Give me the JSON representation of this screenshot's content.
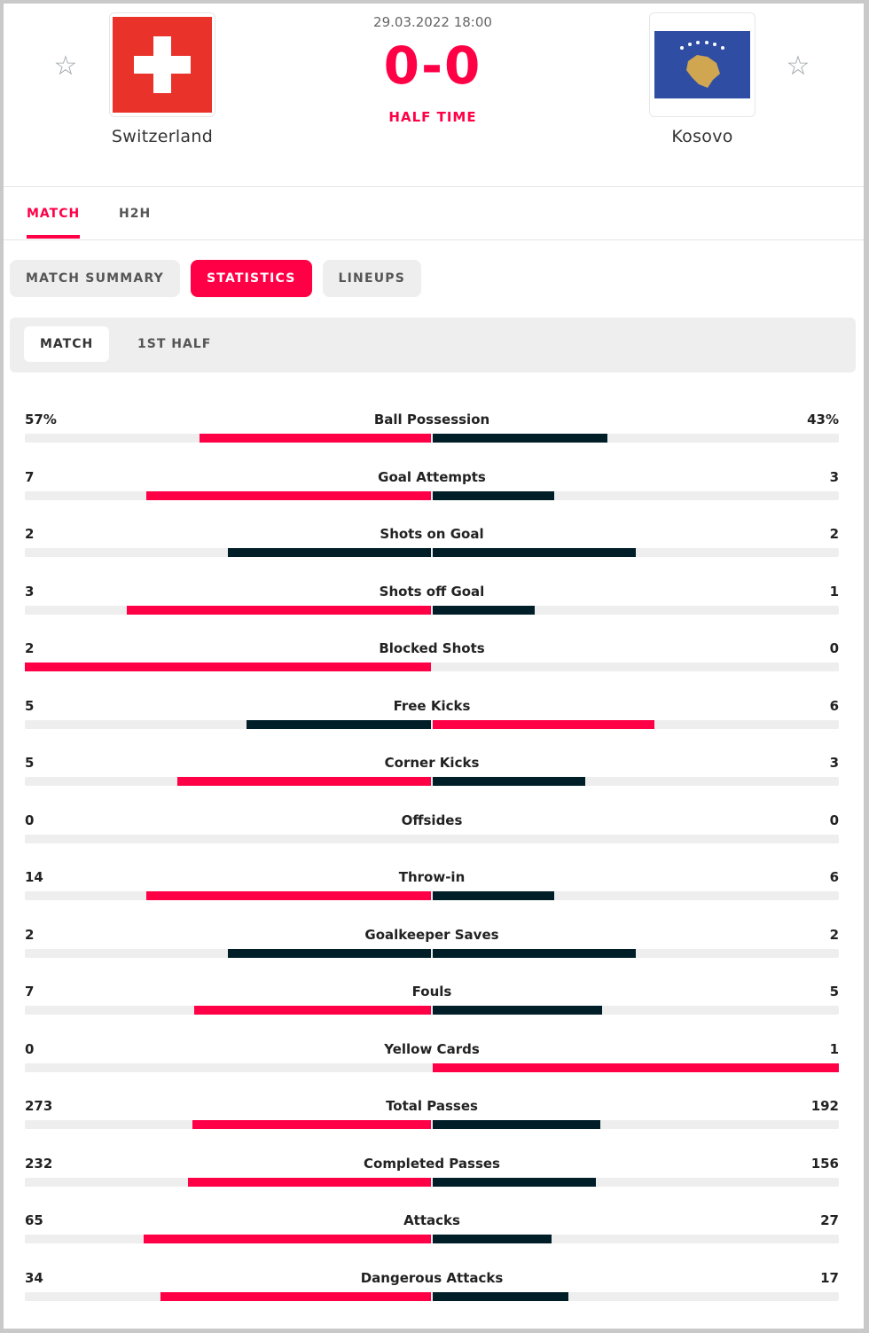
{
  "match": {
    "datetime": "29.03.2022 18:00",
    "score": "0-0",
    "status": "HALF TIME",
    "home": {
      "name": "Switzerland",
      "flag": "swiss-flag"
    },
    "away": {
      "name": "Kosovo",
      "flag": "kosovo-flag"
    }
  },
  "colors": {
    "accent": "#ff0046",
    "dark": "#001e28",
    "track": "#eeeeee"
  },
  "tabs": [
    {
      "label": "MATCH",
      "active": true
    },
    {
      "label": "H2H",
      "active": false
    }
  ],
  "pills": [
    {
      "label": "MATCH SUMMARY",
      "active": false
    },
    {
      "label": "STATISTICS",
      "active": true
    },
    {
      "label": "LINEUPS",
      "active": false
    }
  ],
  "subtabs": [
    {
      "label": "MATCH",
      "active": true
    },
    {
      "label": "1ST HALF",
      "active": false
    }
  ],
  "stats": [
    {
      "category": "Ball Possession",
      "home": "57%",
      "away": "43%",
      "home_val": 57,
      "away_val": 43
    },
    {
      "category": "Goal Attempts",
      "home": "7",
      "away": "3",
      "home_val": 7,
      "away_val": 3
    },
    {
      "category": "Shots on Goal",
      "home": "2",
      "away": "2",
      "home_val": 2,
      "away_val": 2
    },
    {
      "category": "Shots off Goal",
      "home": "3",
      "away": "1",
      "home_val": 3,
      "away_val": 1
    },
    {
      "category": "Blocked Shots",
      "home": "2",
      "away": "0",
      "home_val": 2,
      "away_val": 0
    },
    {
      "category": "Free Kicks",
      "home": "5",
      "away": "6",
      "home_val": 5,
      "away_val": 6
    },
    {
      "category": "Corner Kicks",
      "home": "5",
      "away": "3",
      "home_val": 5,
      "away_val": 3
    },
    {
      "category": "Offsides",
      "home": "0",
      "away": "0",
      "home_val": 0,
      "away_val": 0
    },
    {
      "category": "Throw-in",
      "home": "14",
      "away": "6",
      "home_val": 14,
      "away_val": 6
    },
    {
      "category": "Goalkeeper Saves",
      "home": "2",
      "away": "2",
      "home_val": 2,
      "away_val": 2
    },
    {
      "category": "Fouls",
      "home": "7",
      "away": "5",
      "home_val": 7,
      "away_val": 5
    },
    {
      "category": "Yellow Cards",
      "home": "0",
      "away": "1",
      "home_val": 0,
      "away_val": 1
    },
    {
      "category": "Total Passes",
      "home": "273",
      "away": "192",
      "home_val": 273,
      "away_val": 192
    },
    {
      "category": "Completed Passes",
      "home": "232",
      "away": "156",
      "home_val": 232,
      "away_val": 156
    },
    {
      "category": "Attacks",
      "home": "65",
      "away": "27",
      "home_val": 65,
      "away_val": 27
    },
    {
      "category": "Dangerous Attacks",
      "home": "34",
      "away": "17",
      "home_val": 34,
      "away_val": 17
    }
  ]
}
